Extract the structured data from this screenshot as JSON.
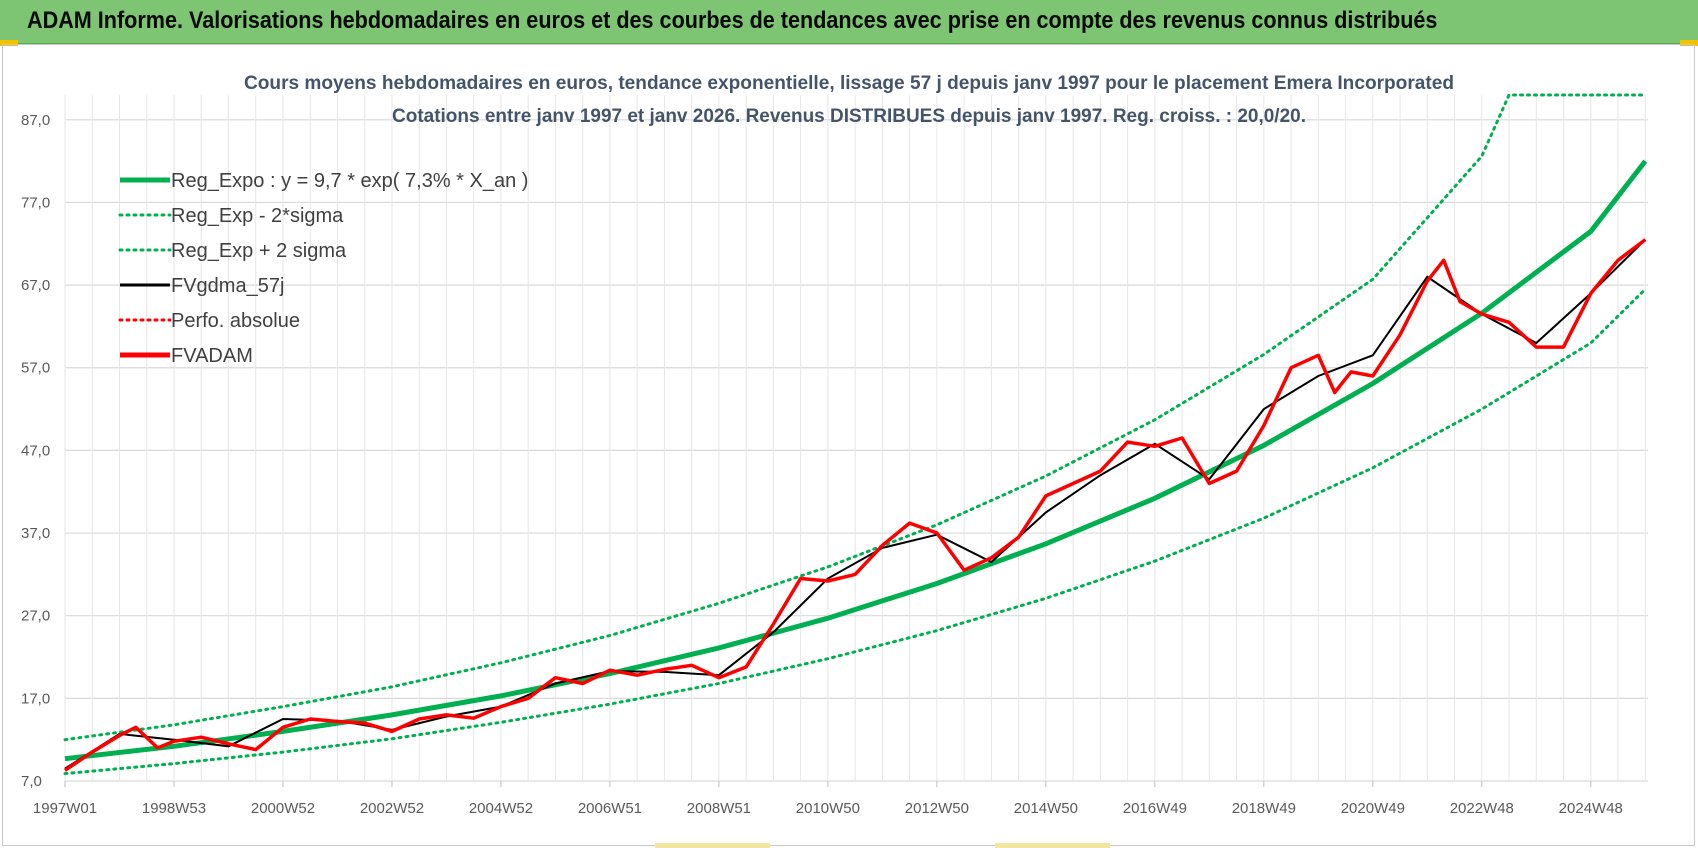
{
  "banner": {
    "title": "ADAM Informe. Valorisations hebdomadaires en euros et des courbes de tendances avec prise en compte des revenus connus distribués"
  },
  "colors": {
    "banner_bg": "#7dc473",
    "trend": "#00b050",
    "smooth": "#000000",
    "perf": "#ff0000",
    "price": "#ff0000",
    "grid": "#d9d9d9",
    "title_text": "#44546a"
  },
  "chart_data": {
    "type": "line",
    "title_line1": "Cours moyens hebdomadaires en euros, tendance exponentielle, lissage 57 j depuis janv 1997  pour le placement Emera Incorporated",
    "title_line2": "Cotations entre janv 1997 et janv 2026. Revenus DISTRIBUES depuis janv 1997.  Reg. croiss. : 20,0/20.",
    "xlabel": "",
    "ylabel": "",
    "x_range_years": [
      1997.0,
      2026.05
    ],
    "ylim": [
      7,
      90
    ],
    "y_ticks": [
      "87,0",
      "77,0",
      "67,0",
      "57,0",
      "47,0",
      "37,0",
      "27,0",
      "17,0",
      "7,0"
    ],
    "y_tick_values": [
      87,
      77,
      67,
      57,
      47,
      37,
      27,
      17,
      7
    ],
    "x_ticks": [
      {
        "label": "1997W01",
        "year": 1997.0
      },
      {
        "label": "1998W53",
        "year": 1999.0
      },
      {
        "label": "2000W52",
        "year": 2001.0
      },
      {
        "label": "2002W52",
        "year": 2003.0
      },
      {
        "label": "2004W52",
        "year": 2005.0
      },
      {
        "label": "2006W51",
        "year": 2007.0
      },
      {
        "label": "2008W51",
        "year": 2009.0
      },
      {
        "label": "2010W50",
        "year": 2011.0
      },
      {
        "label": "2012W50",
        "year": 2013.0
      },
      {
        "label": "2014W50",
        "year": 2015.0
      },
      {
        "label": "2016W49",
        "year": 2017.0
      },
      {
        "label": "2018W49",
        "year": 2019.0
      },
      {
        "label": "2020W49",
        "year": 2021.0
      },
      {
        "label": "2022W48",
        "year": 2023.0
      },
      {
        "label": "2024W48",
        "year": 2025.0
      }
    ],
    "grid": true,
    "legend_position": "top-left",
    "legend": [
      {
        "label": "Reg_Expo : y = 9,7 * exp( 7,3% *  X_an )",
        "style": "solid-thick",
        "color": "#00b050"
      },
      {
        "label": "Reg_Exp - 2*sigma",
        "style": "dotted",
        "color": "#00b050"
      },
      {
        "label": "Reg_Exp + 2 sigma",
        "style": "dotted",
        "color": "#00b050"
      },
      {
        "label": "FVgdma_57j",
        "style": "solid",
        "color": "#000000"
      },
      {
        "label": "Perfo. absolue",
        "style": "dotted",
        "color": "#ff0000"
      },
      {
        "label": "FVADAM",
        "style": "solid-thick",
        "color": "#ff0000"
      }
    ],
    "series": [
      {
        "name": "Reg_Expo",
        "x": [
          1997,
          1999,
          2001,
          2003,
          2005,
          2007,
          2009,
          2011,
          2013,
          2015,
          2017,
          2019,
          2021,
          2023,
          2025,
          2026
        ],
        "values": [
          9.7,
          11.2,
          13.0,
          15.0,
          17.3,
          20.0,
          23.1,
          26.7,
          30.9,
          35.7,
          41.2,
          47.6,
          55.1,
          63.6,
          73.5,
          82.0
        ]
      },
      {
        "name": "Reg_Exp - 2*sigma",
        "x": [
          1997,
          1999,
          2001,
          2003,
          2005,
          2007,
          2009,
          2011,
          2013,
          2015,
          2017,
          2019,
          2021,
          2023,
          2025,
          2026
        ],
        "values": [
          7.9,
          9.1,
          10.5,
          12.1,
          14.1,
          16.3,
          18.8,
          21.8,
          25.2,
          29.1,
          33.6,
          38.8,
          44.9,
          52.0,
          60.0,
          66.5
        ]
      },
      {
        "name": "Reg_Exp + 2 sigma",
        "x": [
          1997,
          1999,
          2001,
          2003,
          2005,
          2007,
          2009,
          2011,
          2013,
          2015,
          2017,
          2019,
          2021,
          2023,
          2023.5,
          2026
        ],
        "values": [
          12.0,
          13.8,
          16.0,
          18.4,
          21.3,
          24.6,
          28.5,
          32.9,
          38.0,
          43.9,
          50.7,
          58.6,
          67.7,
          82.6,
          90.0,
          90.0
        ]
      },
      {
        "name": "FVgdma_57j",
        "x": [
          1997,
          1998,
          1999,
          2000,
          2001,
          2002,
          2003,
          2004,
          2005,
          2006,
          2007,
          2008,
          2009,
          2010,
          2011,
          2012,
          2013,
          2014,
          2015,
          2016,
          2017,
          2018,
          2019,
          2020,
          2021,
          2022,
          2023,
          2024,
          2025,
          2026
        ],
        "values": [
          8.5,
          12.7,
          12.0,
          11.2,
          14.5,
          14.3,
          13.2,
          14.8,
          16.0,
          18.8,
          20.3,
          20.2,
          19.8,
          25.0,
          31.5,
          35.2,
          36.8,
          33.5,
          39.5,
          44.0,
          47.8,
          43.5,
          52.0,
          56.0,
          58.5,
          68.0,
          63.5,
          60.0,
          66.0,
          72.5
        ]
      },
      {
        "name": "FVADAM",
        "x": [
          1997,
          1997.5,
          1998,
          1998.3,
          1998.7,
          1999,
          1999.5,
          2000,
          2000.5,
          2001,
          2001.5,
          2002,
          2002.5,
          2003,
          2003.5,
          2004,
          2004.5,
          2005,
          2005.5,
          2006,
          2006.5,
          2007,
          2007.5,
          2008,
          2008.5,
          2009,
          2009.5,
          2010,
          2010.5,
          2011,
          2011.5,
          2012,
          2012.5,
          2013,
          2013.5,
          2014,
          2014.5,
          2015,
          2015.5,
          2016,
          2016.5,
          2017,
          2017.5,
          2018,
          2018.5,
          2019,
          2019.5,
          2020,
          2020.3,
          2020.6,
          2021,
          2021.5,
          2022,
          2022.3,
          2022.6,
          2023,
          2023.5,
          2024,
          2024.5,
          2025,
          2025.5,
          2026
        ],
        "values": [
          8.3,
          10.5,
          12.5,
          13.5,
          11.0,
          11.8,
          12.3,
          11.5,
          10.8,
          13.5,
          14.5,
          14.2,
          14.0,
          13.0,
          14.5,
          15.0,
          14.6,
          16.0,
          17.0,
          19.5,
          18.8,
          20.4,
          19.8,
          20.5,
          21.0,
          19.5,
          20.8,
          26.0,
          31.5,
          31.2,
          32.0,
          35.5,
          38.2,
          37.0,
          32.5,
          34.0,
          36.5,
          41.5,
          43.0,
          44.5,
          48.0,
          47.5,
          48.5,
          43.0,
          44.5,
          50.0,
          57.0,
          58.5,
          54.0,
          56.5,
          56.0,
          61.0,
          67.5,
          70.0,
          65.0,
          63.5,
          62.5,
          59.5,
          59.5,
          66.0,
          70.0,
          72.5
        ]
      }
    ]
  }
}
